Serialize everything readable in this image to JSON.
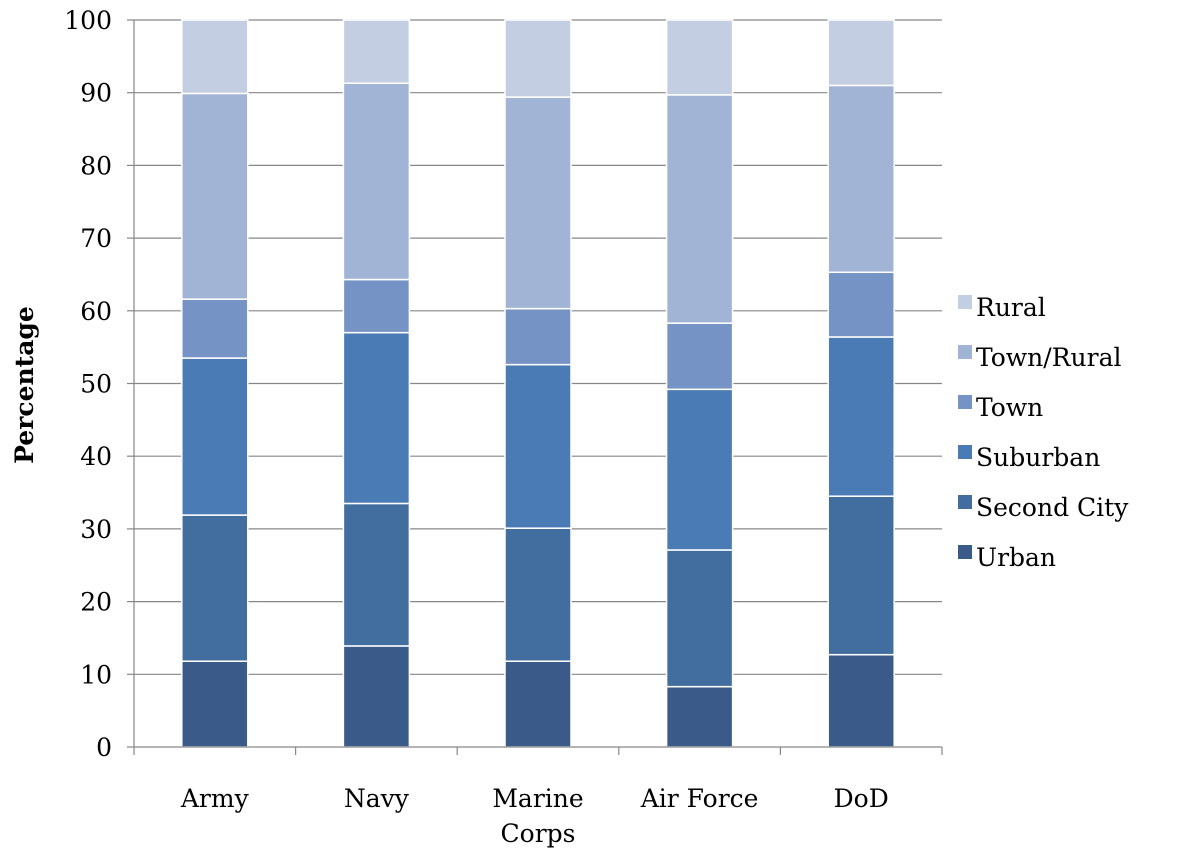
{
  "chart_data": {
    "type": "bar",
    "stacked": true,
    "title": "",
    "xlabel": "",
    "ylabel": "Percentage",
    "ylim": [
      0,
      100
    ],
    "yticks": [
      0,
      10,
      20,
      30,
      40,
      50,
      60,
      70,
      80,
      90,
      100
    ],
    "grid": true,
    "legend_position": "right",
    "categories": [
      [
        "Army"
      ],
      [
        "Navy"
      ],
      [
        "Marine",
        "Corps"
      ],
      [
        "Air Force"
      ],
      [
        "DoD"
      ]
    ],
    "series": [
      {
        "name": "Urban",
        "color": "#3A5B8A",
        "values": [
          11.8,
          13.9,
          11.8,
          8.3,
          12.7
        ]
      },
      {
        "name": "Second City",
        "color": "#426E9F",
        "values": [
          20.1,
          19.6,
          18.3,
          18.8,
          21.8
        ]
      },
      {
        "name": "Suburban",
        "color": "#4A7BB4",
        "values": [
          21.6,
          23.5,
          22.5,
          22.1,
          21.9
        ]
      },
      {
        "name": "Town",
        "color": "#7693C5",
        "values": [
          8.1,
          7.3,
          7.7,
          9.1,
          8.9
        ]
      },
      {
        "name": "Town/Rural",
        "color": "#A2B4D5",
        "values": [
          28.3,
          27.0,
          29.1,
          31.4,
          25.7
        ]
      },
      {
        "name": "Rural",
        "color": "#C4CEE3",
        "values": [
          10.1,
          8.7,
          10.6,
          10.3,
          9.0
        ]
      }
    ]
  }
}
